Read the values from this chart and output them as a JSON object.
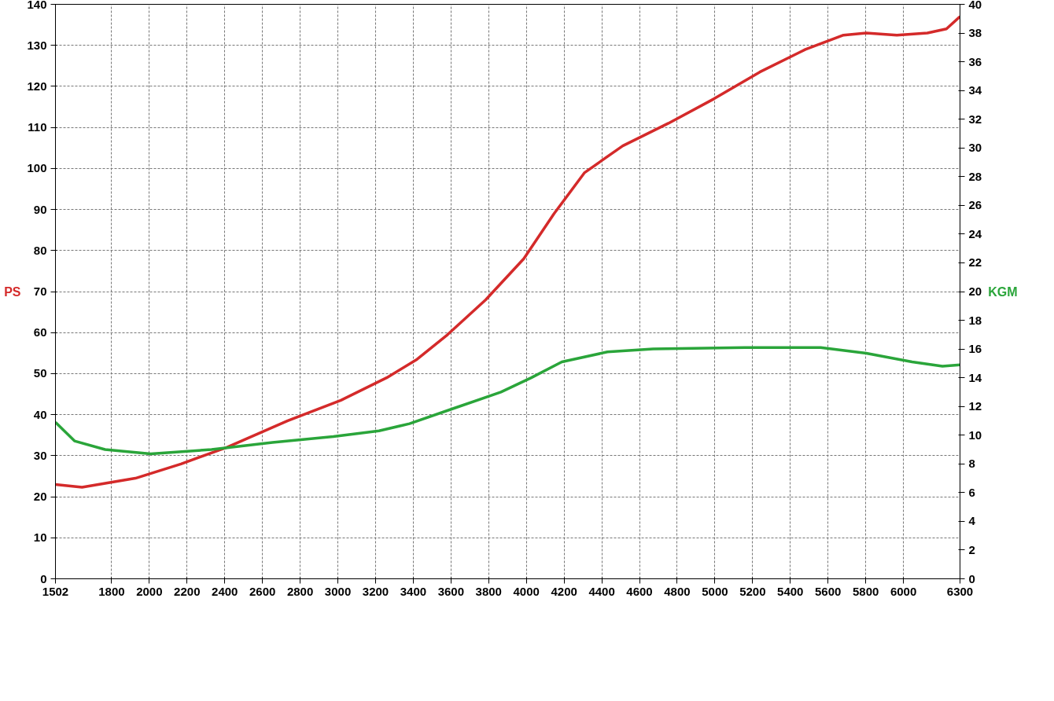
{
  "chart_data": {
    "type": "line",
    "ylabel": "PS",
    "y2label": "KGM",
    "xlim": [
      1502,
      6300
    ],
    "xticks": [
      1502,
      1800,
      2000,
      2200,
      2400,
      2600,
      2800,
      3000,
      3200,
      3400,
      3600,
      3800,
      4000,
      4200,
      4400,
      4600,
      4800,
      5000,
      5200,
      5400,
      5600,
      5800,
      6000,
      6300
    ],
    "ylim": [
      0,
      140
    ],
    "yticks": [
      0,
      10,
      20,
      30,
      40,
      50,
      60,
      70,
      80,
      90,
      100,
      110,
      120,
      130,
      140
    ],
    "y2lim": [
      0,
      40
    ],
    "y2ticks": [
      0,
      2,
      4,
      6,
      8,
      10,
      12,
      14,
      16,
      18,
      20,
      22,
      24,
      26,
      28,
      30,
      32,
      34,
      36,
      38,
      40
    ],
    "grid": true,
    "line_style": "solid",
    "series": [
      {
        "color": "#d42a2a",
        "x": [
          1502,
          1643,
          1926,
          2168,
          2410,
          2734,
          3016,
          3259,
          3420,
          3582,
          3784,
          3986,
          4147,
          4309,
          4511,
          4753,
          4996,
          5238,
          5480,
          5682,
          5803,
          5965,
          6127,
          6228,
          6300
        ],
        "values": [
          23,
          22.3,
          24.5,
          28,
          32,
          38.5,
          43.5,
          49,
          53.5,
          59.5,
          68,
          78,
          89,
          99,
          105.5,
          111,
          117,
          123.5,
          129,
          132.5,
          133,
          132.5,
          133,
          134,
          137
        ]
      },
      {
        "color": "#2aa53a",
        "axis": "y2",
        "x": [
          1502,
          1603,
          1765,
          2007,
          2330,
          2653,
          2976,
          3218,
          3380,
          3622,
          3865,
          4026,
          4188,
          4430,
          4672,
          5157,
          5561,
          5803,
          6046,
          6207,
          6300
        ],
        "values": [
          10.9,
          9.6,
          9.0,
          8.7,
          9.0,
          9.5,
          9.9,
          10.3,
          10.8,
          11.9,
          13.0,
          14.0,
          15.1,
          15.8,
          16.0,
          16.1,
          16.1,
          15.7,
          15.1,
          14.8,
          14.9
        ]
      }
    ]
  }
}
